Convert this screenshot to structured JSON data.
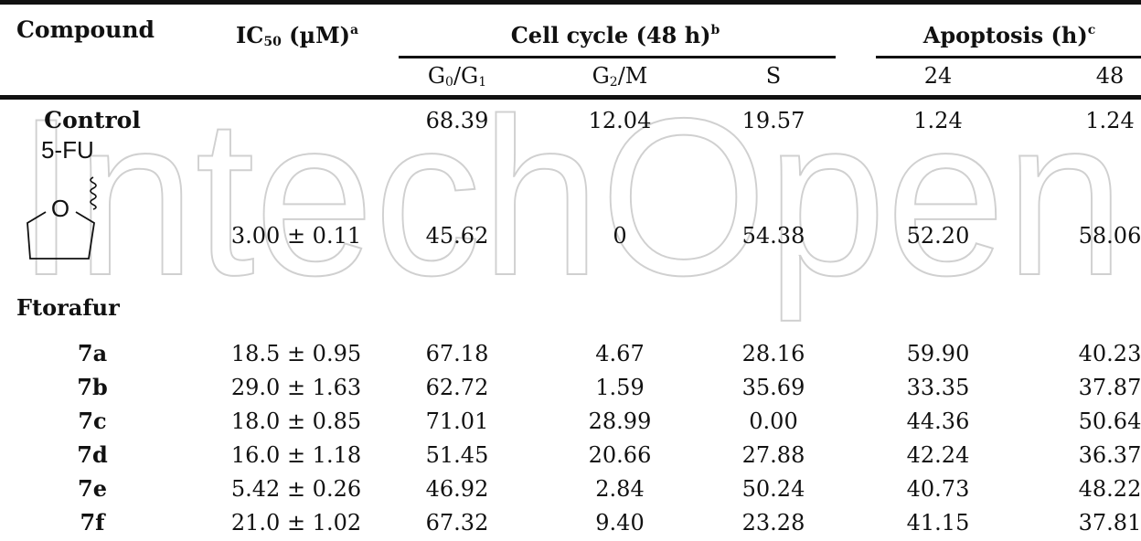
{
  "header": {
    "compound": "Compound",
    "ic50": "IC",
    "ic50_sub": "50",
    "ic50_unit": " (µM)",
    "ic50_sup": "a",
    "cell_cycle": "Cell cycle (48 h)",
    "cell_cycle_sup": "b",
    "apoptosis": "Apoptosis (h)",
    "apoptosis_sup": "c",
    "g0g1_a": "G",
    "g0g1_sub0": "0",
    "g0g1_b": "/G",
    "g0g1_sub1": "1",
    "g2m_a": "G",
    "g2m_sub": "2",
    "g2m_b": "/M",
    "s": "S",
    "h24": "24",
    "h48": "48"
  },
  "control": {
    "name": "Control",
    "g0g1": "68.39",
    "g2m": "12.04",
    "s": "19.57",
    "h24": "1.24",
    "h48": "1.24"
  },
  "ftorafur": {
    "structure_label": "5-FU",
    "ring_atom": "O",
    "name": "Ftorafur",
    "ic50": "3.00 ± 0.11",
    "g0g1": "45.62",
    "g2m": "0",
    "s": "54.38",
    "h24": "52.20",
    "h48": "58.06"
  },
  "rows": [
    {
      "name": "7a",
      "ic50": "18.5 ± 0.95",
      "g0g1": "67.18",
      "g2m": "4.67",
      "s": "28.16",
      "h24": "59.90",
      "h48": "40.23"
    },
    {
      "name": "7b",
      "ic50": "29.0 ± 1.63",
      "g0g1": "62.72",
      "g2m": "1.59",
      "s": "35.69",
      "h24": "33.35",
      "h48": "37.87"
    },
    {
      "name": "7c",
      "ic50": "18.0 ± 0.85",
      "g0g1": "71.01",
      "g2m": "28.99",
      "s": "0.00",
      "h24": "44.36",
      "h48": "50.64"
    },
    {
      "name": "7d",
      "ic50": "16.0 ± 1.18",
      "g0g1": "51.45",
      "g2m": "20.66",
      "s": "27.88",
      "h24": "42.24",
      "h48": "36.37"
    },
    {
      "name": "7e",
      "ic50": "5.42 ± 0.26",
      "g0g1": "46.92",
      "g2m": "2.84",
      "s": "50.24",
      "h24": "40.73",
      "h48": "48.22"
    },
    {
      "name": "7f",
      "ic50": "21.0 ± 1.02",
      "g0g1": "67.32",
      "g2m": "9.40",
      "s": "23.28",
      "h24": "41.15",
      "h48": "37.81"
    }
  ],
  "watermark": "IntechOpen"
}
